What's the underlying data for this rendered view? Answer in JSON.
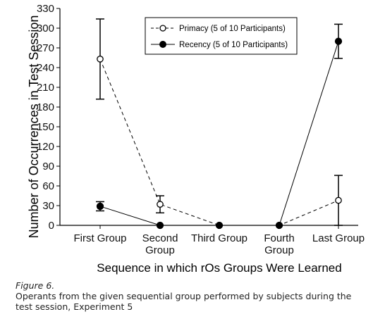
{
  "chart_data": {
    "type": "line",
    "title": "",
    "xlabel": "Sequence in which rOs Groups Were Learned",
    "ylabel": "Number of Occurrences in Test Session",
    "categories": [
      "First Group",
      "Second Group",
      "Third Group",
      "Fourth Group",
      "Last Group"
    ],
    "ylim": [
      0,
      330
    ],
    "yticks": [
      0,
      30,
      60,
      90,
      120,
      150,
      180,
      210,
      240,
      270,
      300,
      330
    ],
    "legend_position": "top-right",
    "series": [
      {
        "name": "Primacy (5 of 10 Participants)",
        "marker": "open-circle",
        "line_style": "dashed",
        "values": [
          253,
          32,
          0,
          0,
          38
        ],
        "error": [
          61,
          13,
          0,
          0,
          38
        ]
      },
      {
        "name": "Recency (5 of 10 Participants)",
        "marker": "filled-circle",
        "line_style": "solid",
        "values": [
          29,
          0,
          0,
          0,
          280
        ],
        "error": [
          7,
          0,
          0,
          0,
          26
        ]
      }
    ]
  },
  "caption": {
    "figure_label": "Figure 6.",
    "text": "Operants from the given sequential group performed by subjects during the test session, Experiment 5"
  }
}
